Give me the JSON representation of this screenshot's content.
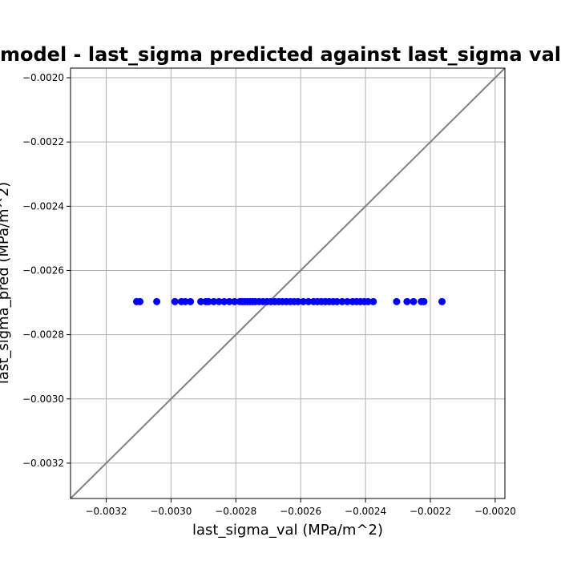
{
  "chart_data": {
    "type": "scatter",
    "title": "model - last_sigma predicted against last_sigma val",
    "xlabel": "last_sigma_val (MPa/m^2)",
    "ylabel": "last_sigma_pred (MPa/m^2)",
    "xlim": [
      -0.00331,
      -0.00197
    ],
    "ylim": [
      -0.00331,
      -0.00197
    ],
    "xticks": [
      -0.0032,
      -0.003,
      -0.0028,
      -0.0026,
      -0.0024,
      -0.0022,
      -0.002
    ],
    "yticks": [
      -0.0032,
      -0.003,
      -0.0028,
      -0.0026,
      -0.0024,
      -0.0022,
      -0.002
    ],
    "xtick_labels": [
      "−0.0032",
      "−0.0030",
      "−0.0028",
      "−0.0026",
      "−0.0024",
      "−0.0022",
      "−0.0020"
    ],
    "ytick_labels": [
      "−0.0032",
      "−0.0030",
      "−0.0028",
      "−0.0026",
      "−0.0024",
      "−0.0022",
      "−0.0020"
    ],
    "grid": true,
    "point_color": "#0000ff",
    "line_color": "#808080",
    "reference_line": [
      [
        -0.00331,
        -0.00331
      ],
      [
        -0.00197,
        -0.00197
      ]
    ],
    "points": {
      "x": [
        -0.003106,
        -0.003096,
        -0.003044,
        -0.002988,
        -0.002968,
        -0.002956,
        -0.00294,
        -0.002908,
        -0.002892,
        -0.002884,
        -0.002868,
        -0.002852,
        -0.002836,
        -0.00282,
        -0.002804,
        -0.002788,
        -0.00278,
        -0.002772,
        -0.002764,
        -0.002756,
        -0.002748,
        -0.00274,
        -0.002728,
        -0.002716,
        -0.002704,
        -0.002692,
        -0.00268,
        -0.002668,
        -0.002656,
        -0.002644,
        -0.002632,
        -0.00262,
        -0.002608,
        -0.002592,
        -0.002576,
        -0.00256,
        -0.002548,
        -0.002536,
        -0.002524,
        -0.002512,
        -0.0025,
        -0.002488,
        -0.002472,
        -0.002456,
        -0.00244,
        -0.002428,
        -0.002416,
        -0.002404,
        -0.002392,
        -0.002376,
        -0.002304,
        -0.002272,
        -0.002252,
        -0.002228,
        -0.00222,
        -0.002164
      ],
      "y": [
        -0.002697,
        -0.002697,
        -0.002697,
        -0.002697,
        -0.002697,
        -0.002697,
        -0.002697,
        -0.002697,
        -0.002697,
        -0.002697,
        -0.002697,
        -0.002697,
        -0.002697,
        -0.002697,
        -0.002697,
        -0.002697,
        -0.002697,
        -0.002697,
        -0.002697,
        -0.002697,
        -0.002697,
        -0.002697,
        -0.002697,
        -0.002697,
        -0.002697,
        -0.002697,
        -0.002697,
        -0.002697,
        -0.002697,
        -0.002697,
        -0.002697,
        -0.002697,
        -0.002697,
        -0.002697,
        -0.002697,
        -0.002697,
        -0.002697,
        -0.002697,
        -0.002697,
        -0.002697,
        -0.002697,
        -0.002697,
        -0.002697,
        -0.002697,
        -0.002697,
        -0.002697,
        -0.002697,
        -0.002697,
        -0.002697,
        -0.002697,
        -0.002697,
        -0.002697,
        -0.002697,
        -0.002697,
        -0.002697,
        -0.002697
      ]
    }
  }
}
